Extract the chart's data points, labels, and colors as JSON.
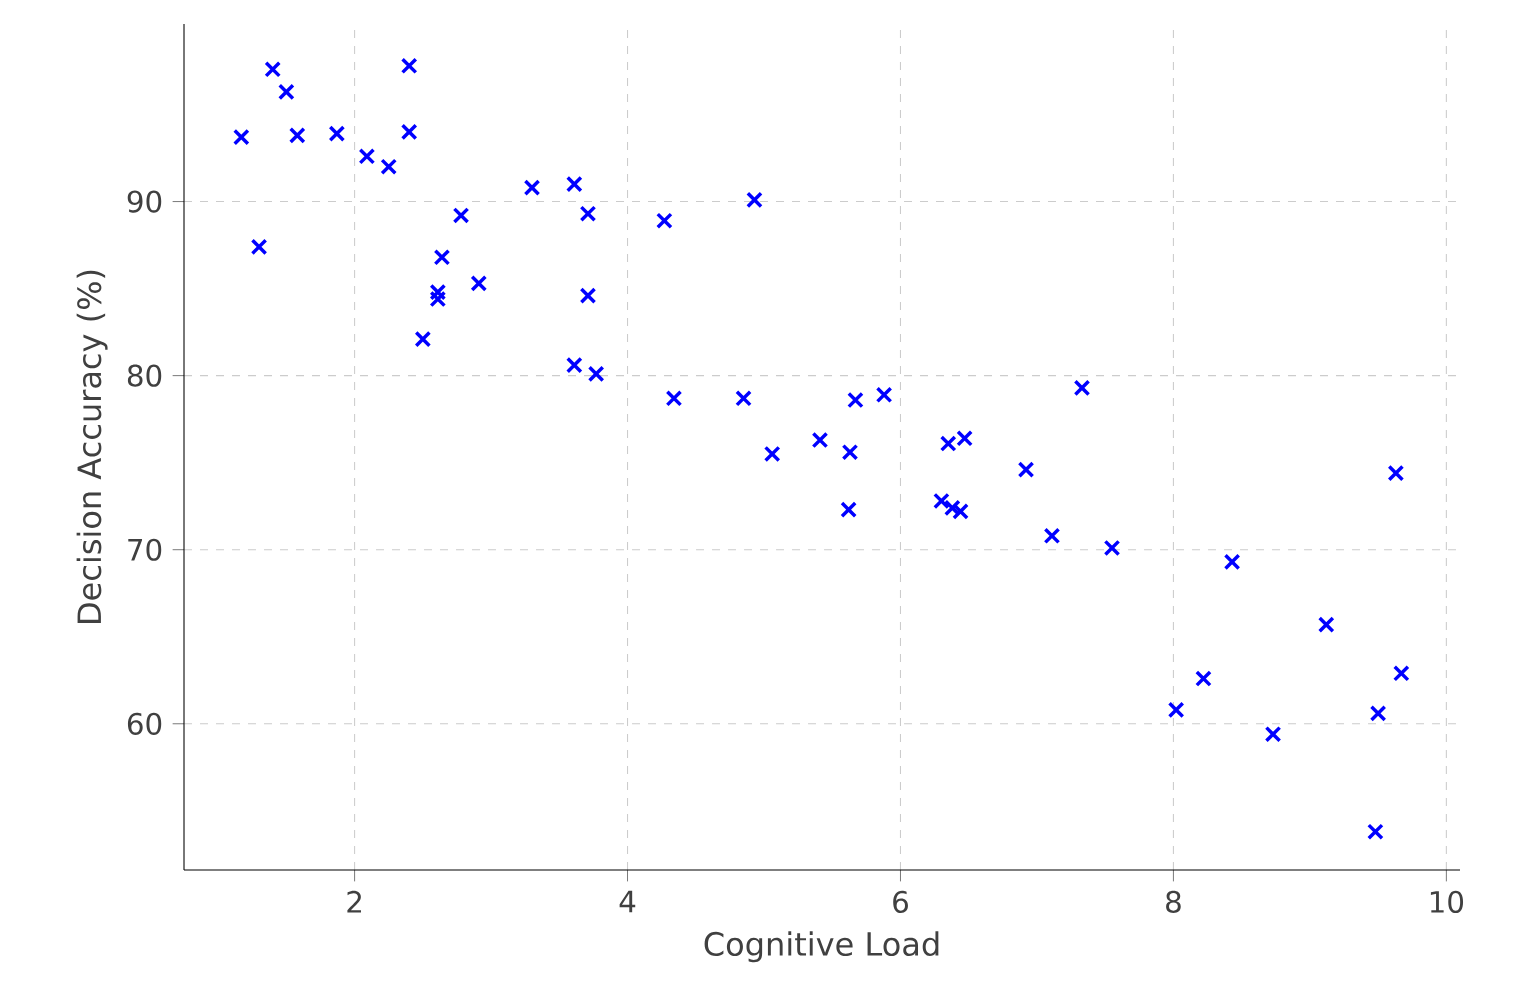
{
  "chart_data": {
    "type": "scatter",
    "xlabel": "Cognitive Load",
    "ylabel": "Decision Accuracy (%)",
    "marker": "cross",
    "grid": true,
    "xlim": [
      0.75,
      10.1
    ],
    "ylim": [
      51.6,
      100.2
    ],
    "xticks": [
      2,
      4,
      6,
      8,
      10
    ],
    "yticks": [
      60,
      70,
      80,
      90
    ],
    "series": [
      {
        "color": "#0000ff",
        "x": [
          1.17,
          1.4,
          1.5,
          1.3,
          1.58,
          1.87,
          2.09,
          2.25,
          2.4,
          2.4,
          2.78,
          2.64,
          2.61,
          2.61,
          2.5,
          2.91,
          3.3,
          3.61,
          3.71,
          3.71,
          3.61,
          3.77,
          4.27,
          4.93,
          4.34,
          4.85,
          5.06,
          5.41,
          5.62,
          5.63,
          5.67,
          5.88,
          6.3,
          6.35,
          6.38,
          6.44,
          6.47,
          6.92,
          7.11,
          7.33,
          7.55,
          8.02,
          8.22,
          8.43,
          8.73,
          9.12,
          9.48,
          9.5,
          9.63,
          9.67
        ],
        "values": [
          93.7,
          97.6,
          96.3,
          87.4,
          93.8,
          93.9,
          92.6,
          92.0,
          97.8,
          94.0,
          89.2,
          86.8,
          84.8,
          84.4,
          82.1,
          85.3,
          90.8,
          91.0,
          89.3,
          84.6,
          80.6,
          80.1,
          88.9,
          90.1,
          78.7,
          78.7,
          75.5,
          76.3,
          72.3,
          75.6,
          78.6,
          78.9,
          72.8,
          76.1,
          72.4,
          72.2,
          76.4,
          74.6,
          70.8,
          79.3,
          70.1,
          60.8,
          62.6,
          69.3,
          59.4,
          65.7,
          53.8,
          60.6,
          74.4,
          62.9
        ]
      }
    ]
  }
}
